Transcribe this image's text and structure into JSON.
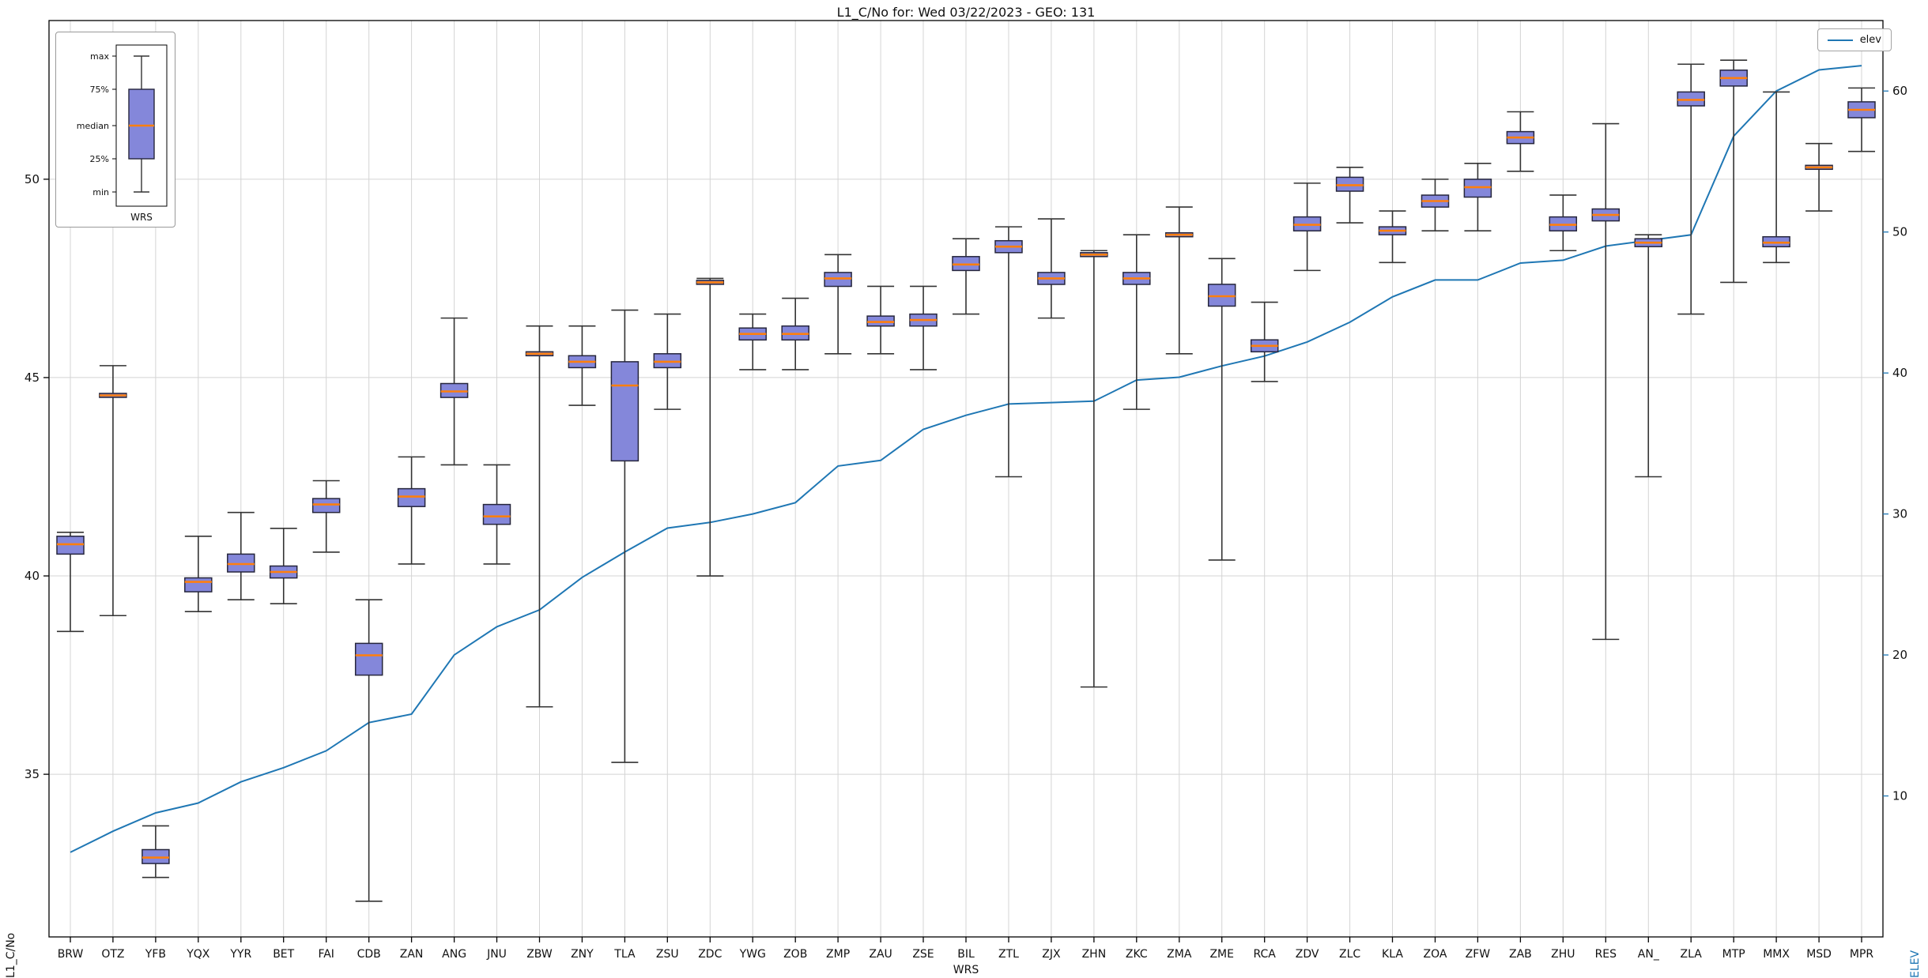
{
  "title": "L1_C/No for: Wed 03/22/2023 - GEO: 131",
  "axes": {
    "x_label": "WRS",
    "y_left_label": "L1_C/No",
    "y_right_label": "ELEV"
  },
  "legend_inset": {
    "labels": [
      "max",
      "75%",
      "median",
      "25%",
      "min"
    ],
    "xlabel": "WRS"
  },
  "legend_elev": {
    "label": "elev"
  },
  "colors": {
    "box_fill": "#8487da",
    "box_edge": "#26263c",
    "median": "#ff7f0e",
    "whisker": "#333333",
    "line": "#1f77b4",
    "grid": "#d4d4d4",
    "axis": "#000000"
  },
  "chart_data": {
    "type": "boxplot",
    "title": "L1_C/No for: Wed 03/22/2023 - GEO: 131",
    "xlabel": "WRS",
    "ylabel_left": "L1_C/No",
    "ylabel_right": "ELEV",
    "ylim_left": [
      30.9,
      54.0
    ],
    "ylim_right": [
      0,
      65
    ],
    "yticks_left": [
      35,
      40,
      45,
      50
    ],
    "yticks_right": [
      10,
      20,
      30,
      40,
      50,
      60
    ],
    "grid": true,
    "legend_position": "upper right",
    "categories": [
      "BRW",
      "OTZ",
      "YFB",
      "YQX",
      "YYR",
      "BET",
      "FAI",
      "CDB",
      "ZAN",
      "ANG",
      "JNU",
      "ZBW",
      "ZNY",
      "TLA",
      "ZSU",
      "ZDC",
      "YWG",
      "ZOB",
      "ZMP",
      "ZAU",
      "ZSE",
      "BIL",
      "ZTL",
      "ZJX",
      "ZHN",
      "ZKC",
      "ZMA",
      "ZME",
      "RCA",
      "ZDV",
      "ZLC",
      "KLA",
      "ZOA",
      "ZFW",
      "ZAB",
      "ZHU",
      "RES",
      "AN_",
      "ZLA",
      "MTP",
      "MMX",
      "MSD",
      "MPR"
    ],
    "boxes": [
      {
        "station": "BRW",
        "whislo": 38.6,
        "q1": 40.55,
        "med": 40.8,
        "q3": 41.0,
        "whishi": 41.1
      },
      {
        "station": "OTZ",
        "whislo": 39.0,
        "q1": 44.5,
        "med": 44.55,
        "q3": 44.6,
        "whishi": 45.3
      },
      {
        "station": "YFB",
        "whislo": 32.4,
        "q1": 32.75,
        "med": 32.9,
        "q3": 33.1,
        "whishi": 33.7
      },
      {
        "station": "YQX",
        "whislo": 39.1,
        "q1": 39.6,
        "med": 39.85,
        "q3": 39.95,
        "whishi": 41.0
      },
      {
        "station": "YYR",
        "whislo": 39.4,
        "q1": 40.1,
        "med": 40.3,
        "q3": 40.55,
        "whishi": 41.6
      },
      {
        "station": "BET",
        "whislo": 39.3,
        "q1": 39.95,
        "med": 40.1,
        "q3": 40.25,
        "whishi": 41.2
      },
      {
        "station": "FAI",
        "whislo": 40.6,
        "q1": 41.6,
        "med": 41.8,
        "q3": 41.95,
        "whishi": 42.4
      },
      {
        "station": "CDB",
        "whislo": 31.8,
        "q1": 37.5,
        "med": 38.0,
        "q3": 38.3,
        "whishi": 39.4
      },
      {
        "station": "ZAN",
        "whislo": 40.3,
        "q1": 41.75,
        "med": 42.0,
        "q3": 42.2,
        "whishi": 43.0
      },
      {
        "station": "ANG",
        "whislo": 42.8,
        "q1": 44.5,
        "med": 44.65,
        "q3": 44.85,
        "whishi": 46.5
      },
      {
        "station": "JNU",
        "whislo": 40.3,
        "q1": 41.3,
        "med": 41.5,
        "q3": 41.8,
        "whishi": 42.8
      },
      {
        "station": "ZBW",
        "whislo": 36.7,
        "q1": 45.55,
        "med": 45.6,
        "q3": 45.65,
        "whishi": 46.3
      },
      {
        "station": "ZNY",
        "whislo": 44.3,
        "q1": 45.25,
        "med": 45.4,
        "q3": 45.55,
        "whishi": 46.3
      },
      {
        "station": "TLA",
        "whislo": 35.3,
        "q1": 42.9,
        "med": 44.8,
        "q3": 45.4,
        "whishi": 46.7
      },
      {
        "station": "ZSU",
        "whislo": 44.2,
        "q1": 45.25,
        "med": 45.4,
        "q3": 45.6,
        "whishi": 46.6
      },
      {
        "station": "ZDC",
        "whislo": 40.0,
        "q1": 47.35,
        "med": 47.4,
        "q3": 47.45,
        "whishi": 47.5
      },
      {
        "station": "YWG",
        "whislo": 45.2,
        "q1": 45.95,
        "med": 46.1,
        "q3": 46.25,
        "whishi": 46.6
      },
      {
        "station": "ZOB",
        "whislo": 45.2,
        "q1": 45.95,
        "med": 46.1,
        "q3": 46.3,
        "whishi": 47.0
      },
      {
        "station": "ZMP",
        "whislo": 45.6,
        "q1": 47.3,
        "med": 47.5,
        "q3": 47.65,
        "whishi": 48.1
      },
      {
        "station": "ZAU",
        "whislo": 45.6,
        "q1": 46.3,
        "med": 46.4,
        "q3": 46.55,
        "whishi": 47.3
      },
      {
        "station": "ZSE",
        "whislo": 45.2,
        "q1": 46.3,
        "med": 46.45,
        "q3": 46.6,
        "whishi": 47.3
      },
      {
        "station": "BIL",
        "whislo": 46.6,
        "q1": 47.7,
        "med": 47.85,
        "q3": 48.05,
        "whishi": 48.5
      },
      {
        "station": "ZTL",
        "whislo": 42.5,
        "q1": 48.15,
        "med": 48.3,
        "q3": 48.45,
        "whishi": 48.8
      },
      {
        "station": "ZJX",
        "whislo": 46.5,
        "q1": 47.35,
        "med": 47.5,
        "q3": 47.65,
        "whishi": 49.0
      },
      {
        "station": "ZHN",
        "whislo": 37.2,
        "q1": 48.05,
        "med": 48.1,
        "q3": 48.15,
        "whishi": 48.2
      },
      {
        "station": "ZKC",
        "whislo": 44.2,
        "q1": 47.35,
        "med": 47.5,
        "q3": 47.65,
        "whishi": 48.6
      },
      {
        "station": "ZMA",
        "whislo": 45.6,
        "q1": 48.55,
        "med": 48.6,
        "q3": 48.65,
        "whishi": 49.3
      },
      {
        "station": "ZME",
        "whislo": 40.4,
        "q1": 46.8,
        "med": 47.05,
        "q3": 47.35,
        "whishi": 48.0
      },
      {
        "station": "RCA",
        "whislo": 44.9,
        "q1": 45.65,
        "med": 45.8,
        "q3": 45.95,
        "whishi": 46.9
      },
      {
        "station": "ZDV",
        "whislo": 47.7,
        "q1": 48.7,
        "med": 48.85,
        "q3": 49.05,
        "whishi": 49.9
      },
      {
        "station": "ZLC",
        "whislo": 48.9,
        "q1": 49.7,
        "med": 49.85,
        "q3": 50.05,
        "whishi": 50.3
      },
      {
        "station": "KLA",
        "whislo": 47.9,
        "q1": 48.6,
        "med": 48.7,
        "q3": 48.8,
        "whishi": 49.2
      },
      {
        "station": "ZOA",
        "whislo": 48.7,
        "q1": 49.3,
        "med": 49.45,
        "q3": 49.6,
        "whishi": 50.0
      },
      {
        "station": "ZFW",
        "whislo": 48.7,
        "q1": 49.55,
        "med": 49.8,
        "q3": 50.0,
        "whishi": 50.4
      },
      {
        "station": "ZAB",
        "whislo": 50.2,
        "q1": 50.9,
        "med": 51.05,
        "q3": 51.2,
        "whishi": 51.7
      },
      {
        "station": "ZHU",
        "whislo": 48.2,
        "q1": 48.7,
        "med": 48.85,
        "q3": 49.05,
        "whishi": 49.6
      },
      {
        "station": "RES",
        "whislo": 38.4,
        "q1": 48.95,
        "med": 49.1,
        "q3": 49.25,
        "whishi": 51.4
      },
      {
        "station": "AN_",
        "whislo": 42.5,
        "q1": 48.3,
        "med": 48.4,
        "q3": 48.5,
        "whishi": 48.6
      },
      {
        "station": "ZLA",
        "whislo": 46.6,
        "q1": 51.85,
        "med": 52.0,
        "q3": 52.2,
        "whishi": 52.9
      },
      {
        "station": "MTP",
        "whislo": 47.4,
        "q1": 52.35,
        "med": 52.55,
        "q3": 52.75,
        "whishi": 53.0
      },
      {
        "station": "MMX",
        "whislo": 47.9,
        "q1": 48.3,
        "med": 48.4,
        "q3": 48.55,
        "whishi": 52.2
      },
      {
        "station": "MSD",
        "whislo": 49.2,
        "q1": 50.25,
        "med": 50.3,
        "q3": 50.35,
        "whishi": 50.9
      },
      {
        "station": "MPR",
        "whislo": 50.7,
        "q1": 51.55,
        "med": 51.75,
        "q3": 51.95,
        "whishi": 52.3
      }
    ],
    "line": {
      "name": "elev",
      "axis": "right",
      "values": [
        6.0,
        7.5,
        8.8,
        9.5,
        11.0,
        12.0,
        13.2,
        15.2,
        15.8,
        20.0,
        22.0,
        23.2,
        25.5,
        27.3,
        29.0,
        29.4,
        30.0,
        30.8,
        33.4,
        33.8,
        36.0,
        37.0,
        37.8,
        37.9,
        38.0,
        39.5,
        39.7,
        40.5,
        41.2,
        42.2,
        43.6,
        45.4,
        46.6,
        46.6,
        47.8,
        48.0,
        49.0,
        49.4,
        49.8,
        56.8,
        60.0,
        61.5,
        61.8
      ]
    }
  }
}
